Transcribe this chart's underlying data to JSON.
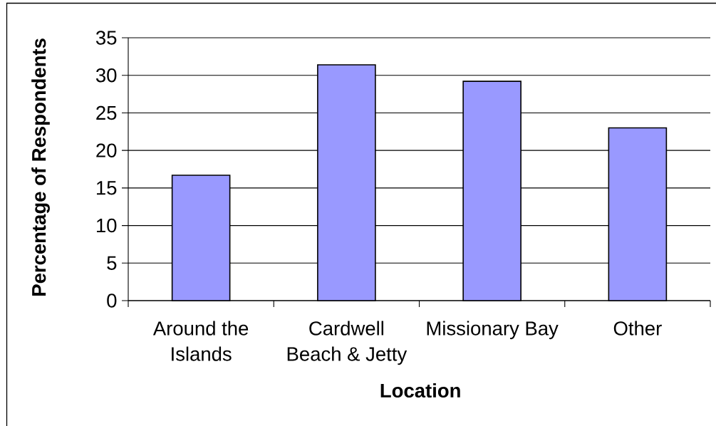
{
  "chart_data": {
    "type": "bar",
    "xlabel": "Location",
    "ylabel": "Percentage of Respondents",
    "categories": [
      "Around the Islands",
      "Cardwell Beach & Jetty",
      "Missionary Bay",
      "Other"
    ],
    "values": [
      16.7,
      31.4,
      29.2,
      23.0
    ],
    "color": "#9999ff",
    "ylim": [
      0,
      35
    ],
    "yticks": [
      0,
      5,
      10,
      15,
      20,
      25,
      30,
      35
    ],
    "grid": "y"
  }
}
